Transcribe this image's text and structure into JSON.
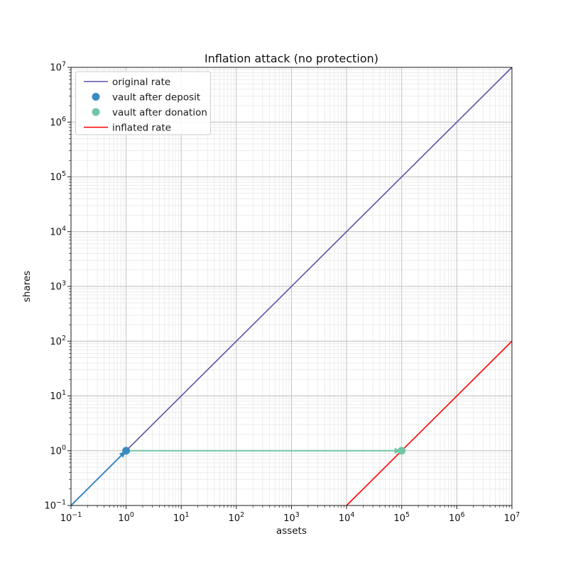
{
  "figure": {
    "title": "Inflation attack (no protection)"
  },
  "chart_data": {
    "type": "line",
    "title": "Inflation attack (no protection)",
    "xlabel": "assets",
    "ylabel": "shares",
    "xscale": "log",
    "yscale": "log",
    "xlim": [
      0.1,
      10000000
    ],
    "ylim": [
      0.1,
      10000000
    ],
    "x_tick_exponents": [
      -1,
      0,
      1,
      2,
      3,
      4,
      5,
      6,
      7
    ],
    "y_tick_exponents": [
      -1,
      0,
      1,
      2,
      3,
      4,
      5,
      6,
      7
    ],
    "grid": {
      "which": "both",
      "major_color": "#bcbcbc",
      "minor_color": "#e6e6e6"
    },
    "spine_color": "#1a1a1a",
    "legend_position": "upper-left",
    "series": [
      {
        "name": "original rate",
        "kind": "line",
        "color": "#5b53a8",
        "points": [
          [
            0.1,
            0.1
          ],
          [
            10000000,
            10000000
          ]
        ]
      },
      {
        "name": "vault after deposit",
        "kind": "scatter",
        "color": "#3a8ac1",
        "points": [
          [
            1,
            1
          ]
        ]
      },
      {
        "name": "vault after donation",
        "kind": "scatter",
        "color": "#70c6a5",
        "points": [
          [
            100000,
            1
          ]
        ]
      },
      {
        "name": "inflated rate",
        "kind": "line",
        "color": "#ff0000",
        "points": [
          [
            10000,
            0.1
          ],
          [
            10000000,
            100
          ]
        ]
      }
    ],
    "annotations": [
      {
        "kind": "arrow",
        "color": "#3a8ac1",
        "from": [
          0.1,
          0.1
        ],
        "to": [
          1,
          1
        ]
      },
      {
        "kind": "arrow",
        "color": "#70c6a5",
        "from": [
          1,
          1
        ],
        "to": [
          100000,
          1
        ]
      }
    ]
  }
}
